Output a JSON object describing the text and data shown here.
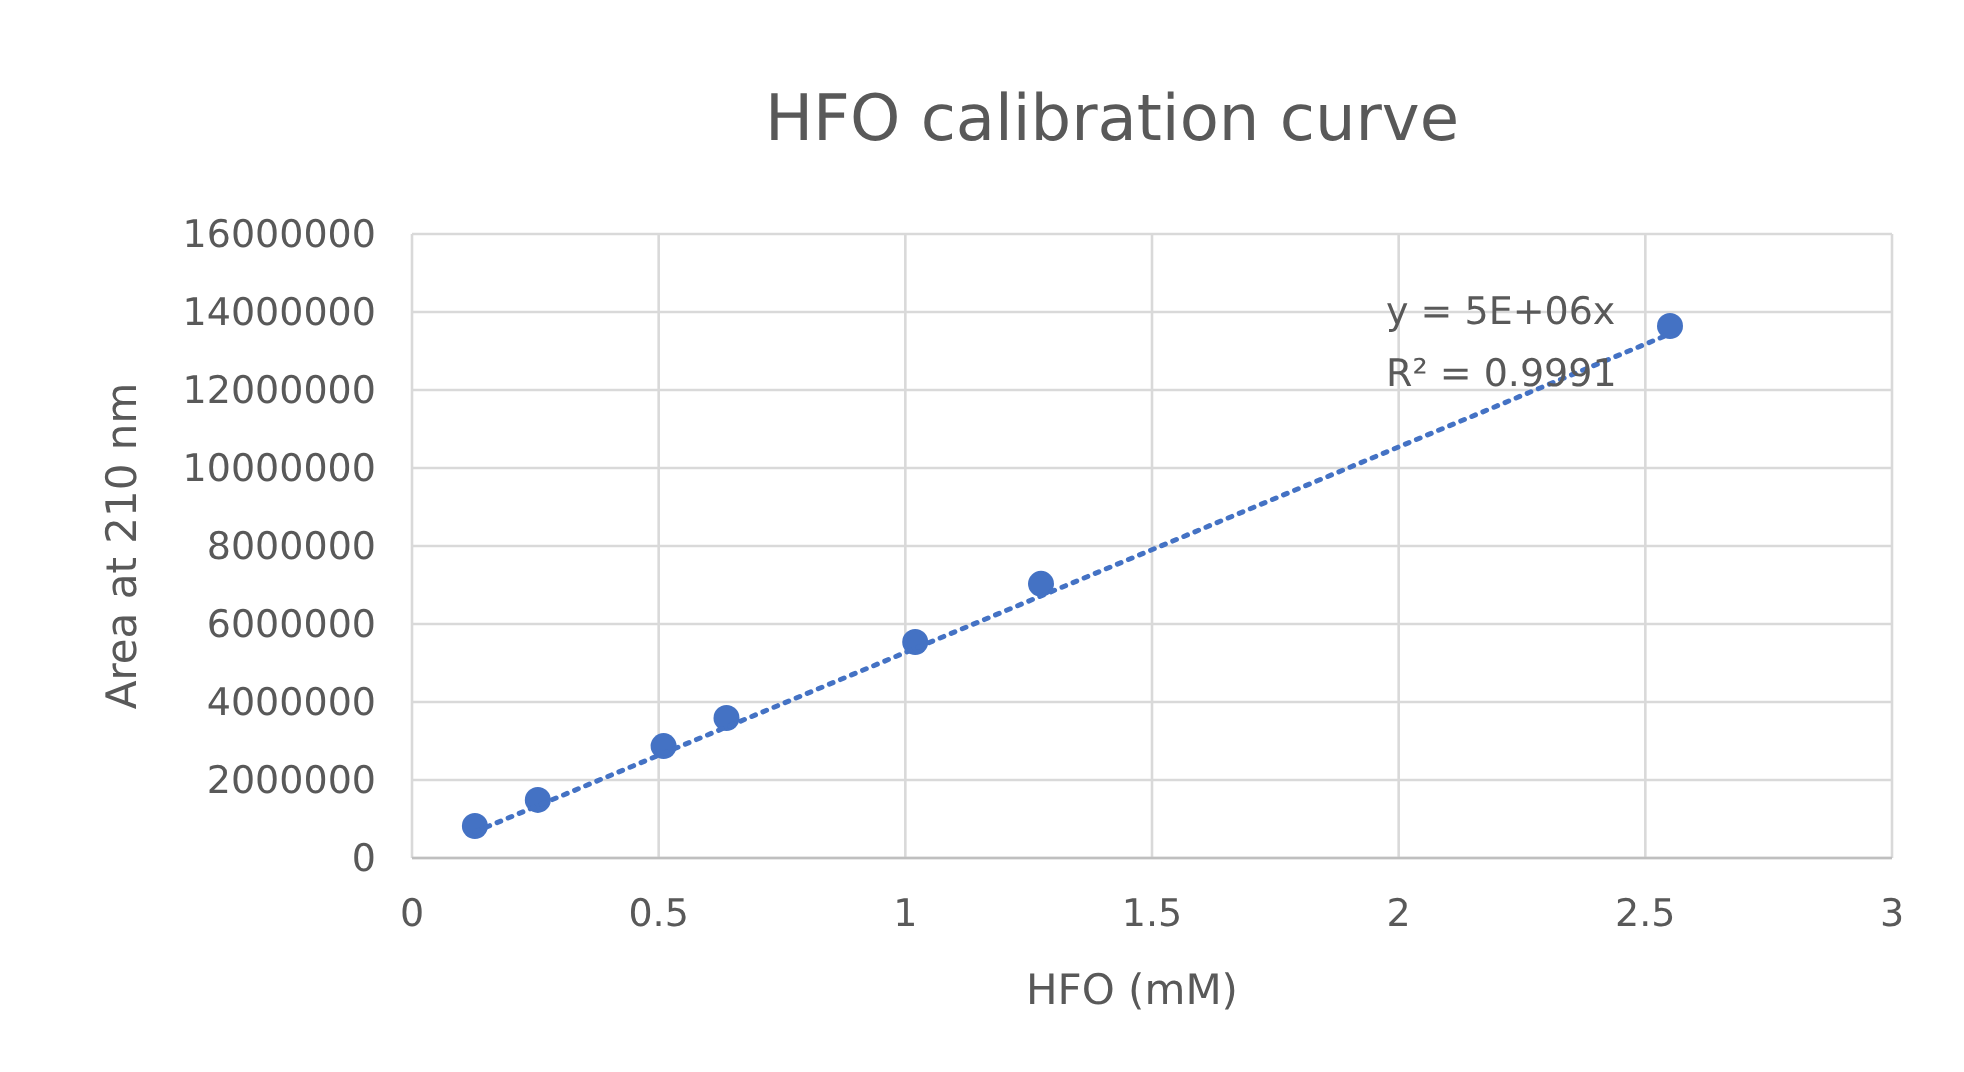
{
  "chart_data": {
    "type": "scatter",
    "title": "HFO calibration curve",
    "xlabel": "HFO (mM)",
    "ylabel": "Area at 210 nm",
    "x": [
      0.1275,
      0.255,
      0.51,
      0.6375,
      1.02,
      1.275,
      2.55
    ],
    "series": [
      {
        "color": "#4472c4",
        "marker": "circle",
        "values": [
          820000,
          1490000,
          2870000,
          3590000,
          5540000,
          7030000,
          13640000
        ]
      },
      {
        "type": "line",
        "color": "#4472c4",
        "line_style": "dotted",
        "marker": "none",
        "x": [
          0.1275,
          2.55
        ],
        "values": [
          670000,
          13440000
        ]
      }
    ],
    "xlim": [
      0,
      3
    ],
    "xticks": [
      0,
      0.5,
      1,
      1.5,
      2,
      2.5,
      3
    ],
    "ylim": [
      0,
      16000000
    ],
    "yticks": [
      0,
      2000000,
      4000000,
      6000000,
      8000000,
      10000000,
      12000000,
      14000000,
      16000000
    ],
    "grid": true,
    "annotations": [
      "y = 5E+06x",
      "R² = 0.9991"
    ]
  }
}
